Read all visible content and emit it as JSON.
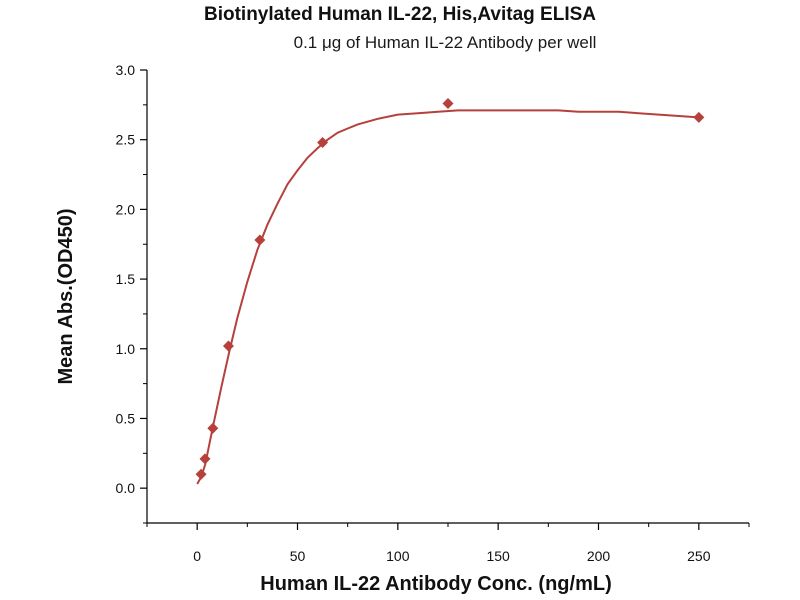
{
  "chart_data": {
    "type": "scatter",
    "title": "Biotinylated Human IL-22, His,Avitag ELISA",
    "subtitle": "0.1 μg of Human IL-22 Antibody per well",
    "xlabel": "Human IL-22 Antibody Conc. (ng/mL)",
    "ylabel": "Mean Abs.(OD450)",
    "xlim": [
      -25,
      275
    ],
    "ylim": [
      -0.25,
      3.0
    ],
    "xticks": [
      0,
      50,
      100,
      150,
      200,
      250
    ],
    "yticks": [
      0.0,
      0.5,
      1.0,
      1.5,
      2.0,
      2.5,
      3.0
    ],
    "xtick_labels": [
      "0",
      "50",
      "100",
      "150",
      "200",
      "250"
    ],
    "ytick_labels": [
      "0.0",
      "0.5",
      "1.0",
      "1.5",
      "2.0",
      "2.5",
      "3.0"
    ],
    "grid": false,
    "series": [
      {
        "marker": "diamond",
        "color": "#b5403c",
        "x": [
          1.95,
          3.9,
          7.8,
          15.6,
          31.25,
          62.5,
          125,
          250
        ],
        "y": [
          0.1,
          0.21,
          0.43,
          1.02,
          1.78,
          2.48,
          2.76,
          2.66
        ]
      }
    ],
    "fit_curve": {
      "color": "#b5403c",
      "x": [
        0,
        2,
        4,
        8,
        12,
        16,
        20,
        25,
        30,
        35,
        40,
        45,
        50,
        55,
        60,
        65,
        70,
        75,
        80,
        90,
        100,
        110,
        120,
        130,
        140,
        150,
        160,
        170,
        180,
        190,
        200,
        210,
        220,
        230,
        240,
        250
      ],
      "y": [
        0.03,
        0.08,
        0.17,
        0.45,
        0.72,
        0.98,
        1.22,
        1.48,
        1.71,
        1.89,
        2.04,
        2.18,
        2.28,
        2.37,
        2.44,
        2.5,
        2.55,
        2.58,
        2.61,
        2.65,
        2.68,
        2.69,
        2.7,
        2.71,
        2.71,
        2.71,
        2.71,
        2.71,
        2.71,
        2.7,
        2.7,
        2.7,
        2.69,
        2.68,
        2.67,
        2.66
      ]
    }
  }
}
